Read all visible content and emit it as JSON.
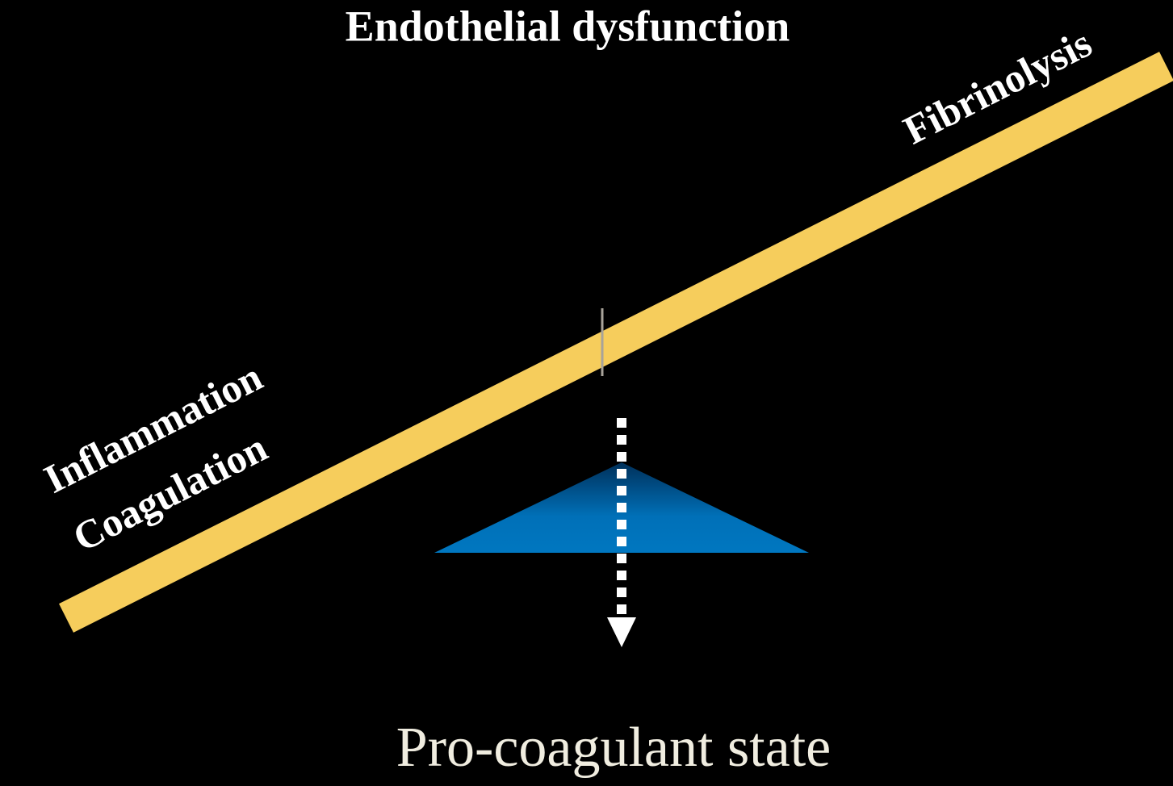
{
  "header": {
    "title": "Endothelial dysfunction"
  },
  "labels": {
    "right": "Fibrinolysis",
    "left_top": "Inflammation",
    "left_bottom": "Coagulation"
  },
  "footer": {
    "result": "Pro-coagulant state"
  }
}
